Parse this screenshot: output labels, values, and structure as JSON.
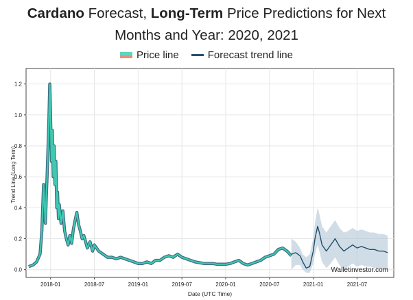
{
  "title": {
    "part1_bold": "Cardano",
    "part2": " Forecast, ",
    "part3_bold": "Long-Term",
    "part4": " Price Predictions for Next",
    "line2": "Months and Year: 2020, 2021"
  },
  "legend": {
    "price_label": "Price line",
    "trend_label": "Forecast trend line",
    "price_color_top": "#5fd4bf",
    "price_color_bottom": "#e8907a",
    "trend_color": "#1f4e6b"
  },
  "watermark": "Walletinvestor.com",
  "chart_data": {
    "type": "line",
    "xlabel": "Date (UTC Time)",
    "ylabel": "Trend Line (Long Term)",
    "ylim": [
      -0.05,
      1.3
    ],
    "xlim": [
      2017.72,
      2021.92
    ],
    "yticks": [
      0.0,
      0.2,
      0.4,
      0.6,
      0.8,
      1.0,
      1.2
    ],
    "ytick_labels": [
      "0.0",
      "0.2",
      "0.4",
      "0.6",
      "0.8",
      "1.0",
      "1.2"
    ],
    "xticks": [
      2018.0,
      2018.5,
      2019.0,
      2019.5,
      2020.0,
      2020.5,
      2021.0,
      2021.5
    ],
    "xtick_labels": [
      "2018-01",
      "2018-07",
      "2019-01",
      "2019-07",
      "2020-01",
      "2020-07",
      "2021-01",
      "2021-07"
    ],
    "grid": true,
    "series": [
      {
        "name": "Price line",
        "color": "#3ec9b0",
        "x": [
          2017.75,
          2017.8,
          2017.84,
          2017.88,
          2017.9,
          2017.92,
          2017.94,
          2017.96,
          2017.98,
          2017.99,
          2018.0,
          2018.01,
          2018.02,
          2018.03,
          2018.04,
          2018.05,
          2018.06,
          2018.07,
          2018.08,
          2018.09,
          2018.1,
          2018.12,
          2018.14,
          2018.16,
          2018.18,
          2018.2,
          2018.22,
          2018.24,
          2018.26,
          2018.28,
          2018.3,
          2018.32,
          2018.34,
          2018.36,
          2018.38,
          2018.4,
          2018.42,
          2018.45,
          2018.48,
          2018.5,
          2018.55,
          2018.6,
          2018.65,
          2018.7,
          2018.75,
          2018.8,
          2018.85,
          2018.9,
          2018.95,
          2019.0,
          2019.05,
          2019.1,
          2019.15,
          2019.2,
          2019.25,
          2019.3,
          2019.35,
          2019.4,
          2019.45,
          2019.5,
          2019.55,
          2019.6,
          2019.65,
          2019.7,
          2019.75,
          2019.8,
          2019.85,
          2019.9,
          2019.95,
          2020.0,
          2020.05,
          2020.1,
          2020.15,
          2020.2,
          2020.25,
          2020.3,
          2020.35,
          2020.4,
          2020.45,
          2020.5,
          2020.55,
          2020.6,
          2020.65,
          2020.7,
          2020.75
        ],
        "values": [
          0.02,
          0.03,
          0.05,
          0.1,
          0.25,
          0.55,
          0.3,
          0.6,
          0.95,
          1.2,
          1.0,
          0.7,
          0.9,
          0.6,
          0.8,
          0.55,
          0.7,
          0.4,
          0.5,
          0.33,
          0.42,
          0.3,
          0.38,
          0.25,
          0.2,
          0.16,
          0.22,
          0.17,
          0.26,
          0.32,
          0.37,
          0.29,
          0.25,
          0.2,
          0.22,
          0.18,
          0.14,
          0.18,
          0.12,
          0.16,
          0.12,
          0.1,
          0.08,
          0.08,
          0.07,
          0.08,
          0.07,
          0.06,
          0.05,
          0.04,
          0.04,
          0.05,
          0.04,
          0.06,
          0.06,
          0.08,
          0.09,
          0.08,
          0.1,
          0.08,
          0.07,
          0.06,
          0.05,
          0.045,
          0.04,
          0.04,
          0.04,
          0.035,
          0.035,
          0.035,
          0.04,
          0.05,
          0.06,
          0.04,
          0.03,
          0.04,
          0.05,
          0.06,
          0.08,
          0.09,
          0.1,
          0.13,
          0.14,
          0.12,
          0.09
        ]
      },
      {
        "name": "Forecast trend line",
        "color": "#1f4e6b",
        "x": [
          2020.75,
          2020.8,
          2020.85,
          2020.88,
          2020.92,
          2020.96,
          2021.0,
          2021.02,
          2021.05,
          2021.07,
          2021.1,
          2021.15,
          2021.2,
          2021.25,
          2021.3,
          2021.35,
          2021.4,
          2021.45,
          2021.5,
          2021.55,
          2021.6,
          2021.65,
          2021.7,
          2021.75,
          2021.8,
          2021.85
        ],
        "values": [
          0.1,
          0.11,
          0.09,
          0.05,
          0.01,
          0.02,
          0.12,
          0.2,
          0.28,
          0.24,
          0.16,
          0.12,
          0.16,
          0.2,
          0.15,
          0.12,
          0.14,
          0.16,
          0.14,
          0.15,
          0.14,
          0.13,
          0.13,
          0.12,
          0.12,
          0.11
        ]
      }
    ],
    "confidence_band": {
      "x": [
        2020.75,
        2020.8,
        2020.85,
        2020.88,
        2020.92,
        2020.96,
        2021.0,
        2021.02,
        2021.05,
        2021.07,
        2021.1,
        2021.15,
        2021.2,
        2021.25,
        2021.3,
        2021.35,
        2021.4,
        2021.45,
        2021.5,
        2021.55,
        2021.6,
        2021.65,
        2021.7,
        2021.75,
        2021.8,
        2021.85
      ],
      "upper": [
        0.2,
        0.18,
        0.14,
        0.1,
        0.08,
        0.1,
        0.2,
        0.3,
        0.4,
        0.36,
        0.28,
        0.24,
        0.28,
        0.32,
        0.27,
        0.24,
        0.25,
        0.27,
        0.25,
        0.26,
        0.25,
        0.24,
        0.24,
        0.23,
        0.23,
        0.22
      ],
      "lower": [
        0.0,
        0.03,
        0.03,
        0.0,
        -0.02,
        -0.02,
        0.04,
        0.1,
        0.16,
        0.12,
        0.05,
        0.01,
        0.04,
        0.08,
        0.03,
        0.0,
        0.02,
        0.04,
        0.02,
        0.03,
        0.02,
        0.02,
        0.01,
        0.01,
        0.0,
        0.0
      ],
      "color": "#a9bfd1"
    }
  }
}
